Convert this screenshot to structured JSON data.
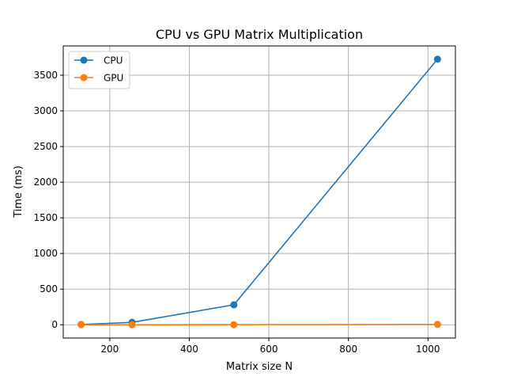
{
  "chart_data": {
    "type": "line",
    "title": "CPU vs GPU Matrix Multiplication",
    "xlabel": "Matrix size N",
    "ylabel": "Time (ms)",
    "x": [
      128,
      256,
      512,
      1024
    ],
    "series": [
      {
        "name": "CPU",
        "color": "#1f77b4",
        "values": [
          4,
          34,
          280,
          3725
        ]
      },
      {
        "name": "GPU",
        "color": "#ff7f0e",
        "values": [
          1,
          1,
          2,
          5
        ]
      }
    ],
    "xlim": [
      83,
      1069
    ],
    "ylim": [
      -186,
      3911
    ],
    "xticks": [
      200,
      400,
      600,
      800,
      1000
    ],
    "yticks": [
      0,
      500,
      1000,
      1500,
      2000,
      2500,
      3000,
      3500
    ],
    "grid": true,
    "legend": "top-left"
  }
}
